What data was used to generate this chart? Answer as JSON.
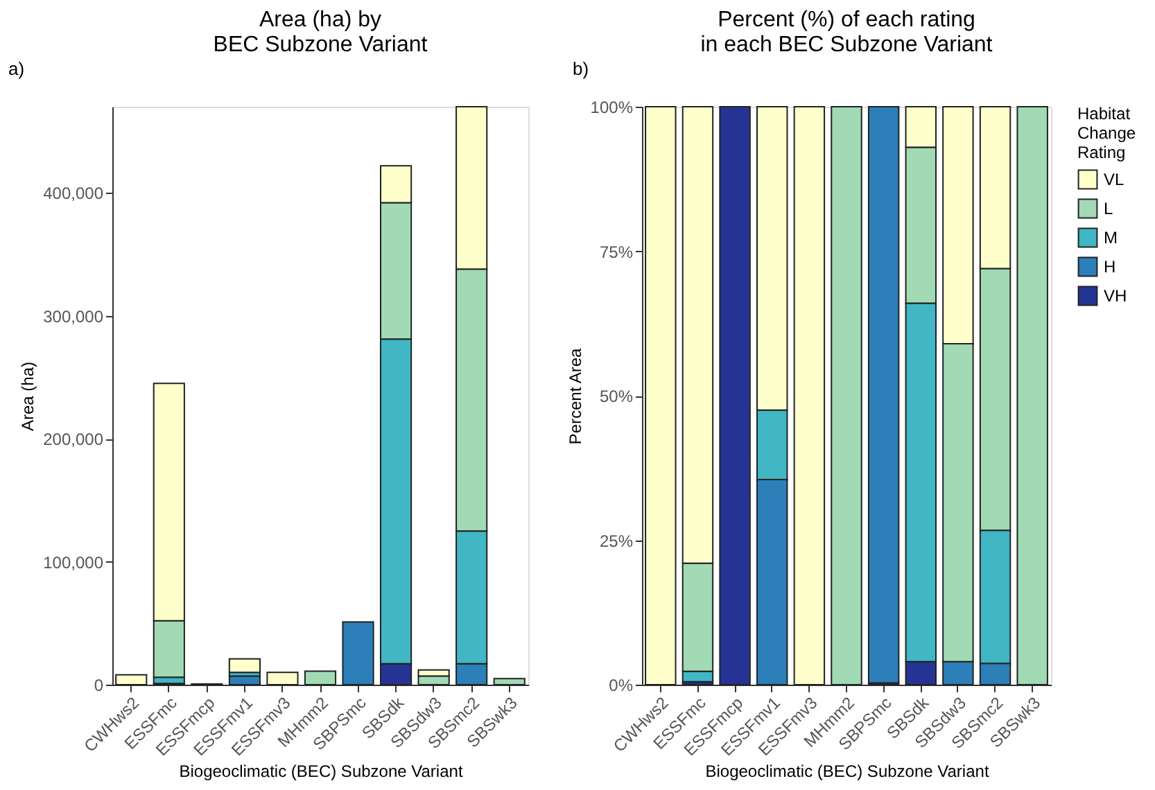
{
  "chart_data": [
    {
      "type": "bar",
      "stacked": true,
      "title": "Area (ha) by\nBEC Subzone Variant",
      "xlabel": "Biogeoclimatic (BEC) Subzone Variant",
      "ylabel": "Area (ha)",
      "annotations": [
        "a)"
      ],
      "categories": [
        "CWHws2",
        "ESSFmc",
        "ESSFmcp",
        "ESSFmv1",
        "ESSFmv3",
        "MHmm2",
        "SBPSmc",
        "SBSdk",
        "SBSdw3",
        "SBSmc2",
        "SBSwk3"
      ],
      "ylim": [
        0,
        470000
      ],
      "yticks": [
        {
          "value": 0,
          "label": "0"
        },
        {
          "value": 100000,
          "label": "100,000"
        },
        {
          "value": 200000,
          "label": "200,000"
        },
        {
          "value": 300000,
          "label": "300,000"
        },
        {
          "value": 400000,
          "label": "400,000"
        }
      ],
      "grid": false,
      "legend": "right",
      "series": [
        {
          "name": "VH",
          "color": "#253494",
          "values": [
            null,
            1000,
            500,
            null,
            null,
            null,
            null,
            17000,
            null,
            null,
            null
          ]
        },
        {
          "name": "H",
          "color": "#2c7fb8",
          "values": [
            null,
            null,
            null,
            7000,
            null,
            null,
            51000,
            null,
            null,
            17000,
            null
          ]
        },
        {
          "name": "M",
          "color": "#41b6c4",
          "values": [
            null,
            5000,
            null,
            3000,
            null,
            null,
            null,
            264000,
            null,
            108000,
            null
          ]
        },
        {
          "name": "L",
          "color": "#a1dab4",
          "values": [
            null,
            46000,
            null,
            null,
            null,
            11000,
            null,
            111000,
            7000,
            213000,
            5000
          ]
        },
        {
          "name": "VL",
          "color": "#ffffcc",
          "values": [
            8000,
            193000,
            null,
            11000,
            10000,
            null,
            null,
            30000,
            5000,
            132000,
            null
          ]
        }
      ]
    },
    {
      "type": "bar",
      "stacked": true,
      "title": "Percent (%) of each rating\nin each BEC Subzone Variant",
      "xlabel": "Biogeoclimatic (BEC) Subzone Variant",
      "ylabel": "Percent Area",
      "annotations": [
        "b)"
      ],
      "legend_title": "Habitat\nChange\nRating",
      "categories": [
        "CWHws2",
        "ESSFmc",
        "ESSFmcp",
        "ESSFmv1",
        "ESSFmv3",
        "MHmm2",
        "SBPSmc",
        "SBSdk",
        "SBSdw3",
        "SBSmc2",
        "SBSwk3"
      ],
      "ylim": [
        0,
        100
      ],
      "yticks": [
        {
          "value": 0,
          "label": "0%"
        },
        {
          "value": 25,
          "label": "25%"
        },
        {
          "value": 50,
          "label": "50%"
        },
        {
          "value": 75,
          "label": "75%"
        },
        {
          "value": 100,
          "label": "100%"
        }
      ],
      "grid": false,
      "legend": "right",
      "series": [
        {
          "name": "VH",
          "color": "#253494",
          "values": [
            null,
            0.5,
            100,
            null,
            null,
            null,
            0.3,
            4,
            null,
            null,
            null
          ]
        },
        {
          "name": "H",
          "color": "#2c7fb8",
          "values": [
            null,
            null,
            null,
            35.5,
            null,
            null,
            99.7,
            null,
            4,
            3.7,
            null
          ]
        },
        {
          "name": "M",
          "color": "#41b6c4",
          "values": [
            null,
            1.8,
            null,
            12,
            null,
            null,
            null,
            62,
            null,
            23,
            null
          ]
        },
        {
          "name": "L",
          "color": "#a1dab4",
          "values": [
            null,
            18.7,
            null,
            null,
            null,
            100,
            null,
            27,
            55,
            45.3,
            100
          ]
        },
        {
          "name": "VL",
          "color": "#ffffcc",
          "values": [
            100,
            79,
            null,
            52.5,
            100,
            null,
            null,
            7,
            41,
            28,
            null
          ]
        }
      ]
    }
  ]
}
